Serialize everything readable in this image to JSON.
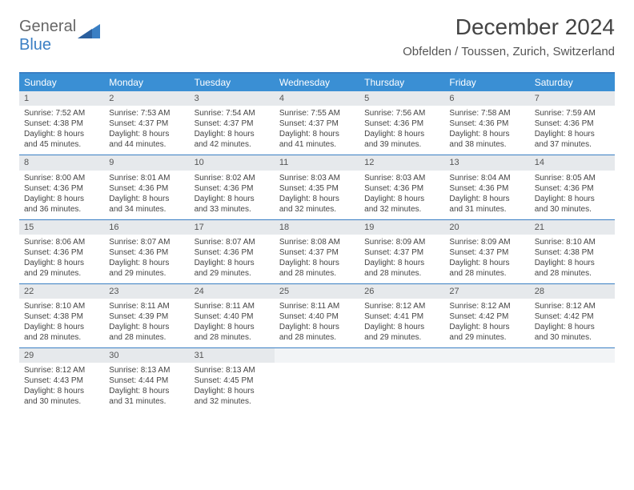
{
  "logo": {
    "part1": "General",
    "part2": "Blue"
  },
  "title": "December 2024",
  "subtitle": "Obfelden / Toussen, Zurich, Switzerland",
  "colors": {
    "header_bg": "#3a8fd4",
    "border": "#3a7fc4",
    "daynum_bg": "#e6e9ec",
    "text": "#444444"
  },
  "day_headers": [
    "Sunday",
    "Monday",
    "Tuesday",
    "Wednesday",
    "Thursday",
    "Friday",
    "Saturday"
  ],
  "weeks": [
    [
      {
        "n": "1",
        "sr": "7:52 AM",
        "ss": "4:38 PM",
        "dl": "8 hours and 45 minutes."
      },
      {
        "n": "2",
        "sr": "7:53 AM",
        "ss": "4:37 PM",
        "dl": "8 hours and 44 minutes."
      },
      {
        "n": "3",
        "sr": "7:54 AM",
        "ss": "4:37 PM",
        "dl": "8 hours and 42 minutes."
      },
      {
        "n": "4",
        "sr": "7:55 AM",
        "ss": "4:37 PM",
        "dl": "8 hours and 41 minutes."
      },
      {
        "n": "5",
        "sr": "7:56 AM",
        "ss": "4:36 PM",
        "dl": "8 hours and 39 minutes."
      },
      {
        "n": "6",
        "sr": "7:58 AM",
        "ss": "4:36 PM",
        "dl": "8 hours and 38 minutes."
      },
      {
        "n": "7",
        "sr": "7:59 AM",
        "ss": "4:36 PM",
        "dl": "8 hours and 37 minutes."
      }
    ],
    [
      {
        "n": "8",
        "sr": "8:00 AM",
        "ss": "4:36 PM",
        "dl": "8 hours and 36 minutes."
      },
      {
        "n": "9",
        "sr": "8:01 AM",
        "ss": "4:36 PM",
        "dl": "8 hours and 34 minutes."
      },
      {
        "n": "10",
        "sr": "8:02 AM",
        "ss": "4:36 PM",
        "dl": "8 hours and 33 minutes."
      },
      {
        "n": "11",
        "sr": "8:03 AM",
        "ss": "4:35 PM",
        "dl": "8 hours and 32 minutes."
      },
      {
        "n": "12",
        "sr": "8:03 AM",
        "ss": "4:36 PM",
        "dl": "8 hours and 32 minutes."
      },
      {
        "n": "13",
        "sr": "8:04 AM",
        "ss": "4:36 PM",
        "dl": "8 hours and 31 minutes."
      },
      {
        "n": "14",
        "sr": "8:05 AM",
        "ss": "4:36 PM",
        "dl": "8 hours and 30 minutes."
      }
    ],
    [
      {
        "n": "15",
        "sr": "8:06 AM",
        "ss": "4:36 PM",
        "dl": "8 hours and 29 minutes."
      },
      {
        "n": "16",
        "sr": "8:07 AM",
        "ss": "4:36 PM",
        "dl": "8 hours and 29 minutes."
      },
      {
        "n": "17",
        "sr": "8:07 AM",
        "ss": "4:36 PM",
        "dl": "8 hours and 29 minutes."
      },
      {
        "n": "18",
        "sr": "8:08 AM",
        "ss": "4:37 PM",
        "dl": "8 hours and 28 minutes."
      },
      {
        "n": "19",
        "sr": "8:09 AM",
        "ss": "4:37 PM",
        "dl": "8 hours and 28 minutes."
      },
      {
        "n": "20",
        "sr": "8:09 AM",
        "ss": "4:37 PM",
        "dl": "8 hours and 28 minutes."
      },
      {
        "n": "21",
        "sr": "8:10 AM",
        "ss": "4:38 PM",
        "dl": "8 hours and 28 minutes."
      }
    ],
    [
      {
        "n": "22",
        "sr": "8:10 AM",
        "ss": "4:38 PM",
        "dl": "8 hours and 28 minutes."
      },
      {
        "n": "23",
        "sr": "8:11 AM",
        "ss": "4:39 PM",
        "dl": "8 hours and 28 minutes."
      },
      {
        "n": "24",
        "sr": "8:11 AM",
        "ss": "4:40 PM",
        "dl": "8 hours and 28 minutes."
      },
      {
        "n": "25",
        "sr": "8:11 AM",
        "ss": "4:40 PM",
        "dl": "8 hours and 28 minutes."
      },
      {
        "n": "26",
        "sr": "8:12 AM",
        "ss": "4:41 PM",
        "dl": "8 hours and 29 minutes."
      },
      {
        "n": "27",
        "sr": "8:12 AM",
        "ss": "4:42 PM",
        "dl": "8 hours and 29 minutes."
      },
      {
        "n": "28",
        "sr": "8:12 AM",
        "ss": "4:42 PM",
        "dl": "8 hours and 30 minutes."
      }
    ],
    [
      {
        "n": "29",
        "sr": "8:12 AM",
        "ss": "4:43 PM",
        "dl": "8 hours and 30 minutes."
      },
      {
        "n": "30",
        "sr": "8:13 AM",
        "ss": "4:44 PM",
        "dl": "8 hours and 31 minutes."
      },
      {
        "n": "31",
        "sr": "8:13 AM",
        "ss": "4:45 PM",
        "dl": "8 hours and 32 minutes."
      },
      null,
      null,
      null,
      null
    ]
  ],
  "labels": {
    "sunrise": "Sunrise: ",
    "sunset": "Sunset: ",
    "daylight": "Daylight: "
  }
}
